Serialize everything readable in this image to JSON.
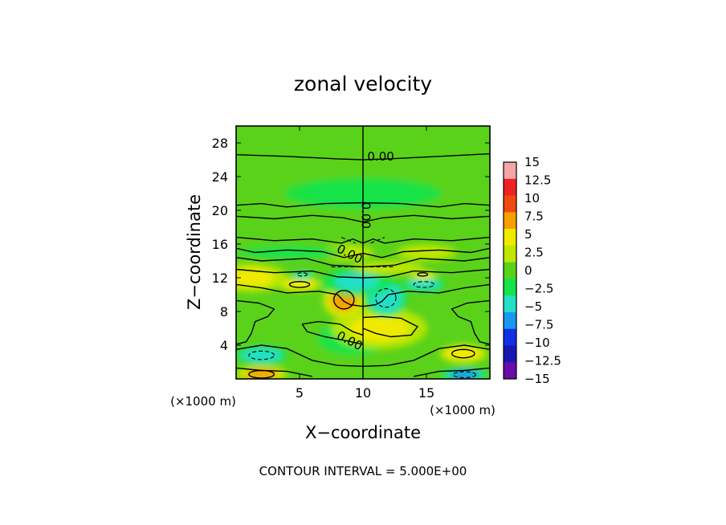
{
  "chart_data": {
    "type": "heatmap",
    "title": "zonal velocity",
    "xlabel": "X−coordinate",
    "ylabel": "Z−coordinate",
    "x_unit_left": "(×1000 m)",
    "x_unit_right": "(×1000 m)",
    "xlim": [
      0,
      20
    ],
    "ylim": [
      0,
      30
    ],
    "x_ticks": [
      5,
      10,
      15
    ],
    "y_ticks": [
      4,
      8,
      12,
      16,
      20,
      24,
      28
    ],
    "x_tick_labels": [
      "5",
      "10",
      "15"
    ],
    "y_tick_labels": [
      "4",
      "8",
      "12",
      "16",
      "20",
      "24",
      "28"
    ],
    "colorbar": {
      "labels": [
        "15",
        "12.5",
        "10",
        "7.5",
        "5",
        "2.5",
        "0",
        "−2.5",
        "−5",
        "−7.5",
        "−10",
        "−12.5",
        "−15"
      ],
      "colors": [
        "#f4a6a6",
        "#ee2222",
        "#f04a10",
        "#f5a000",
        "#f0ea00",
        "#bfe800",
        "#5ad21a",
        "#14e44a",
        "#22e0c8",
        "#1898f0",
        "#1030e8",
        "#1818b0",
        "#6a0ca8"
      ]
    },
    "background_value": 1.5,
    "features": [
      {
        "x": 2.0,
        "z": 0.6,
        "value": 8,
        "rx": 1.1,
        "rz": 0.5
      },
      {
        "x": 18.0,
        "z": 0.5,
        "value": -6,
        "rx": 1.0,
        "rz": 0.45
      },
      {
        "x": 2.0,
        "z": 2.8,
        "value": -5,
        "rx": 1.1,
        "rz": 0.6
      },
      {
        "x": 17.9,
        "z": 3.0,
        "value": 7,
        "rx": 1.0,
        "rz": 0.6
      },
      {
        "x": 9.2,
        "z": 4.8,
        "value": -1.5,
        "rx": 1.8,
        "rz": 1.3
      },
      {
        "x": 11.3,
        "z": 6.0,
        "value": 5,
        "rx": 2.0,
        "rz": 1.3
      },
      {
        "x": 8.5,
        "z": 9.4,
        "value": 8,
        "rx": 0.9,
        "rz": 1.2
      },
      {
        "x": 11.8,
        "z": 9.6,
        "value": -5,
        "rx": 0.9,
        "rz": 1.2
      },
      {
        "x": 5.0,
        "z": 11.2,
        "value": 7,
        "rx": 0.9,
        "rz": 0.45
      },
      {
        "x": 14.8,
        "z": 11.2,
        "value": -5,
        "rx": 0.9,
        "rz": 0.45
      },
      {
        "x": 5.2,
        "z": 12.3,
        "value": -3,
        "rx": 0.6,
        "rz": 0.3
      },
      {
        "x": 14.7,
        "z": 12.3,
        "value": 6,
        "rx": 0.6,
        "rz": 0.3
      },
      {
        "x": 1.2,
        "z": 12.0,
        "value": 5,
        "rx": 1.5,
        "rz": 0.9
      },
      {
        "x": 9.5,
        "z": 11.5,
        "value": -4,
        "rx": 1.5,
        "rz": 0.9
      },
      {
        "x": 12.0,
        "z": 13.2,
        "value": 3.5,
        "rx": 1.8,
        "rz": 0.5
      },
      {
        "x": 8.5,
        "z": 15.0,
        "value": 3.5,
        "rx": 1.5,
        "rz": 0.6
      },
      {
        "x": 15.0,
        "z": 15.0,
        "value": 4,
        "rx": 1.5,
        "rz": 0.6
      },
      {
        "x": 4.0,
        "z": 15.0,
        "value": -1.5,
        "rx": 2.5,
        "rz": 0.5
      },
      {
        "x": 10.0,
        "z": 22.0,
        "value": -1.0,
        "rx": 4.0,
        "rz": 1.2
      }
    ],
    "contour_label": "0.00",
    "contour_interval_text": "CONTOUR INTERVAL = 5.000E+00"
  }
}
